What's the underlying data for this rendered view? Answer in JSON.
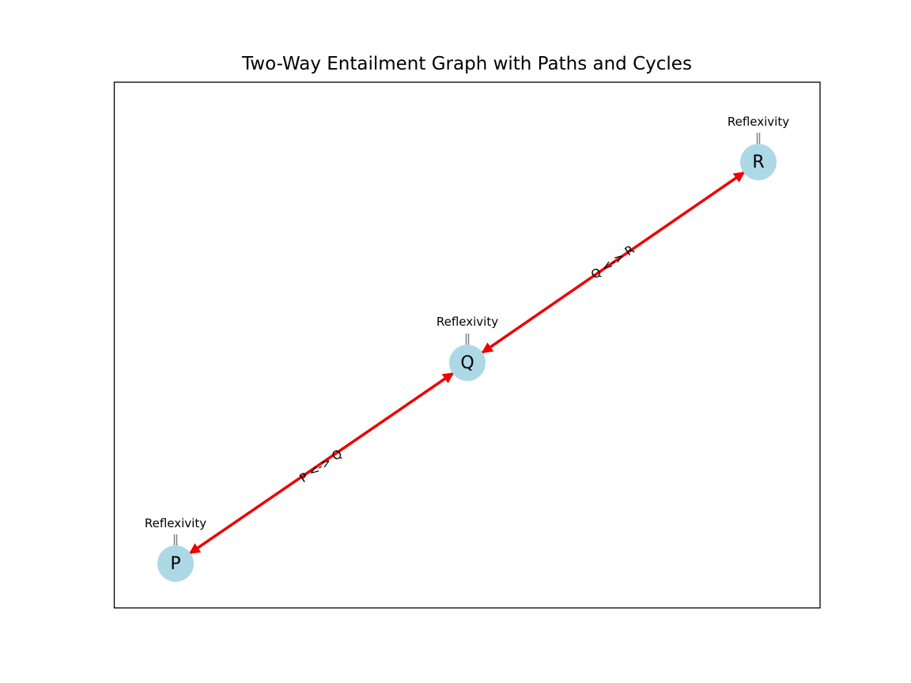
{
  "title": "Two-Way Entailment Graph with Paths and Cycles",
  "nodes": [
    {
      "id": "P",
      "label": "P",
      "loop_label": "Reflexivity"
    },
    {
      "id": "Q",
      "label": "Q",
      "loop_label": "Reflexivity"
    },
    {
      "id": "R",
      "label": "R",
      "loop_label": "Reflexivity"
    }
  ],
  "edges": [
    {
      "from": "P",
      "to": "Q",
      "label": "P <-> Q"
    },
    {
      "from": "Q",
      "to": "R",
      "label": "Q <-> R"
    }
  ],
  "colors": {
    "node_fill": "#add8e6",
    "edge": "#ee0000",
    "loop": "#808080",
    "frame": "#000000"
  }
}
